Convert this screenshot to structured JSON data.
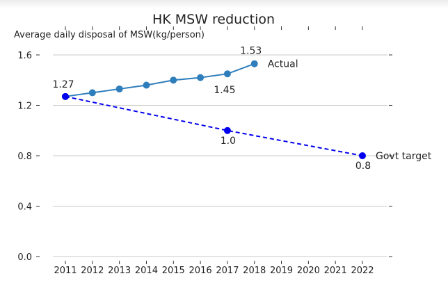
{
  "chart_data": {
    "type": "line",
    "title": "HK MSW reduction",
    "ylabel": "Average daily disposal of MSW(kg/person)",
    "xlabel": "",
    "x_ticks": [
      2011,
      2012,
      2013,
      2014,
      2015,
      2016,
      2017,
      2018,
      2019,
      2020,
      2021,
      2022
    ],
    "y_ticks": [
      "0.0",
      "0.4",
      "0.8",
      "1.2",
      "1.6"
    ],
    "xlim": [
      2011,
      2022
    ],
    "ylim": [
      0.0,
      1.6
    ],
    "grid": "horizontal",
    "series": [
      {
        "name": "Actual",
        "style": "solid",
        "color": "#2f7ebc",
        "x": [
          2011,
          2012,
          2013,
          2014,
          2015,
          2016,
          2017,
          2018
        ],
        "y": [
          1.27,
          1.3,
          1.33,
          1.36,
          1.4,
          1.42,
          1.45,
          1.53
        ]
      },
      {
        "name": "Govt target",
        "style": "dashed",
        "color": "#0000ee",
        "x": [
          2011,
          2017,
          2022
        ],
        "y": [
          1.27,
          1.0,
          0.8
        ]
      }
    ],
    "data_labels": [
      {
        "x": 2011,
        "y": 1.27,
        "text": "1.27"
      },
      {
        "x": 2018,
        "y": 1.53,
        "text": "1.53"
      },
      {
        "x": 2017,
        "y": 1.45,
        "text": "1.45"
      },
      {
        "x": 2017,
        "y": 1.0,
        "text": "1.0"
      },
      {
        "x": 2022,
        "y": 0.8,
        "text": "0.8"
      }
    ]
  }
}
